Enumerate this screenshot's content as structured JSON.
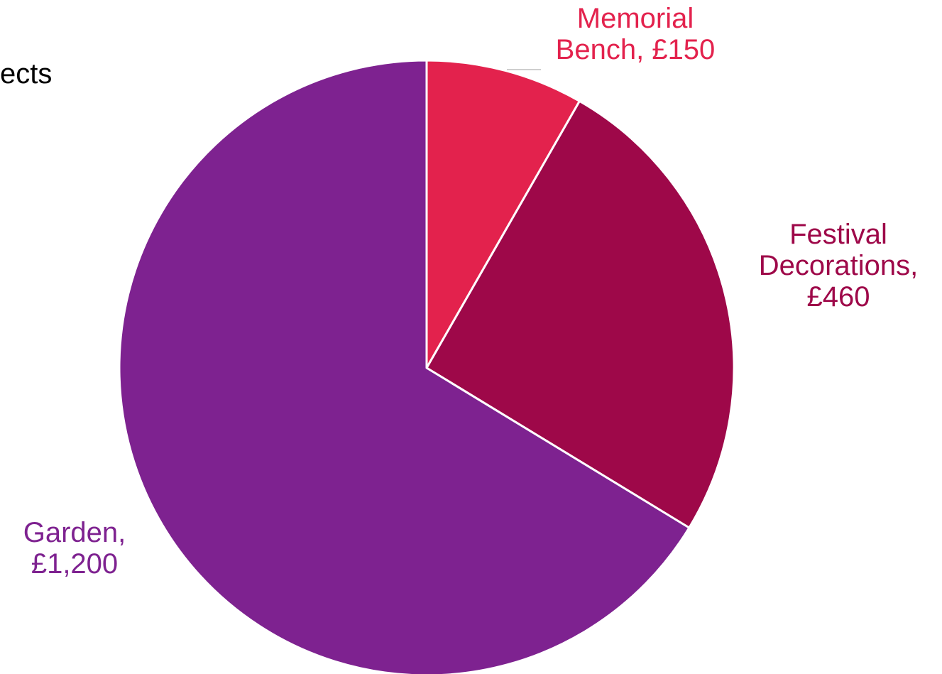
{
  "chart_data": {
    "type": "pie",
    "title_fragment": "ects",
    "slices": [
      {
        "label_lines": [
          "Memorial",
          "Bench, £150"
        ],
        "value": 150,
        "color": "#E3224D"
      },
      {
        "label_lines": [
          "Festival",
          "Decorations,",
          "£460"
        ],
        "value": 460,
        "color": "#9E0849"
      },
      {
        "label_lines": [
          "Garden,",
          "£1,200"
        ],
        "value": 1200,
        "color": "#7E2290"
      }
    ],
    "start_angle": "12 o'clock",
    "direction": "clockwise",
    "slice_border_color": "#FFFFFF",
    "leader_line_color": "#BFBFBF"
  }
}
